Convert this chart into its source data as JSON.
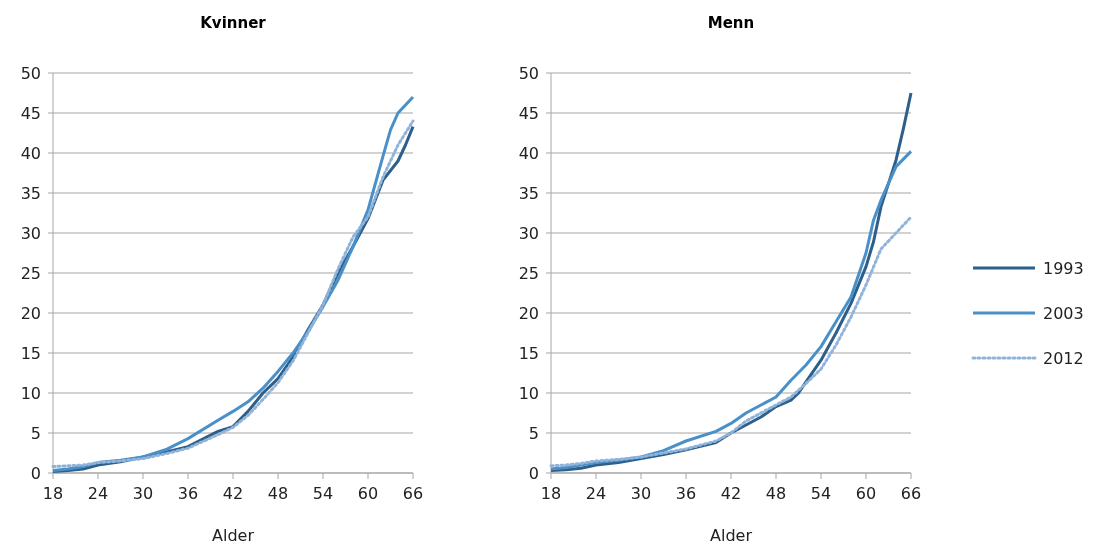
{
  "chart_data": [
    {
      "type": "line",
      "title": "Kvinner",
      "xlabel": "Alder",
      "xlim": [
        18,
        66
      ],
      "xticks": [
        18,
        24,
        30,
        36,
        42,
        48,
        54,
        60,
        66
      ],
      "ylim": [
        0,
        50
      ],
      "yticks": [
        0,
        5,
        10,
        15,
        20,
        25,
        30,
        35,
        40,
        45,
        50
      ],
      "grid": "y",
      "legend": false,
      "series": [
        {
          "color": "#2e5f8a",
          "line_style": "solid",
          "x": [
            18,
            20,
            22,
            24,
            27,
            30,
            33,
            36,
            40,
            42,
            44,
            46,
            48,
            50,
            52,
            54,
            56,
            58,
            60,
            62,
            64,
            65,
            66
          ],
          "values": [
            0.2,
            0.3,
            0.5,
            1,
            1.4,
            2,
            2.6,
            3.3,
            5.2,
            5.8,
            7.7,
            10,
            11.8,
            14.5,
            17.9,
            21,
            25,
            28.3,
            31.8,
            36.6,
            39,
            41,
            43.3
          ]
        },
        {
          "color": "#4a90c8",
          "line_style": "solid",
          "x": [
            18,
            20,
            22,
            24,
            27,
            30,
            33,
            36,
            40,
            42,
            44,
            46,
            48,
            50,
            52,
            54,
            56,
            58,
            60,
            62,
            63,
            64,
            66
          ],
          "values": [
            0.3,
            0.5,
            0.8,
            1.3,
            1.6,
            2,
            2.9,
            4.3,
            6.6,
            7.7,
            8.9,
            10.6,
            12.7,
            15,
            17.7,
            20.8,
            24.1,
            28.3,
            32.9,
            39.6,
            42.9,
            45,
            47
          ]
        },
        {
          "color": "#8fb3d9",
          "line_style": "dotted",
          "x": [
            18,
            20,
            22,
            24,
            27,
            30,
            33,
            36,
            40,
            42,
            44,
            46,
            48,
            50,
            52,
            54,
            56,
            58,
            60,
            62,
            64,
            66
          ],
          "values": [
            0.8,
            0.9,
            1,
            1.3,
            1.5,
            1.8,
            2.4,
            3.1,
            4.8,
            5.7,
            7.2,
            9.2,
            11.3,
            14,
            17.5,
            21,
            25.5,
            29.5,
            32,
            37,
            41,
            44
          ]
        }
      ]
    },
    {
      "type": "line",
      "title": "Menn",
      "xlabel": "Alder",
      "xlim": [
        18,
        66
      ],
      "xticks": [
        18,
        24,
        30,
        36,
        42,
        48,
        54,
        60,
        66
      ],
      "ylim": [
        0,
        50
      ],
      "yticks": [
        0,
        5,
        10,
        15,
        20,
        25,
        30,
        35,
        40,
        45,
        50
      ],
      "grid": "y",
      "legend": "right",
      "series": [
        {
          "name": "1993",
          "color": "#2e5f8a",
          "line_style": "solid",
          "x": [
            18,
            20,
            22,
            24,
            27,
            30,
            33,
            36,
            40,
            42,
            44,
            46,
            48,
            50,
            51,
            52,
            54,
            56,
            58,
            60,
            61,
            62,
            64,
            65,
            66
          ],
          "values": [
            0.3,
            0.4,
            0.6,
            1,
            1.3,
            1.8,
            2.3,
            2.9,
            3.8,
            5,
            6,
            7,
            8.3,
            9.1,
            10,
            11.4,
            14.1,
            17.5,
            21.2,
            25.8,
            28.9,
            33.3,
            39.1,
            43.1,
            47.5
          ]
        },
        {
          "name": "2003",
          "color": "#4a90c8",
          "line_style": "solid",
          "x": [
            18,
            20,
            22,
            24,
            27,
            30,
            33,
            36,
            40,
            42,
            44,
            46,
            48,
            50,
            52,
            54,
            56,
            58,
            60,
            61,
            62,
            64,
            66
          ],
          "values": [
            0.5,
            0.7,
            1,
            1.3,
            1.6,
            2,
            2.8,
            4,
            5.2,
            6.2,
            7.5,
            8.5,
            9.5,
            11.6,
            13.5,
            15.8,
            18.9,
            22,
            27.5,
            31.6,
            34.1,
            38.3,
            40.2
          ]
        },
        {
          "name": "2012",
          "color": "#8fb3d9",
          "line_style": "dotted",
          "x": [
            18,
            20,
            22,
            24,
            27,
            30,
            33,
            36,
            40,
            42,
            44,
            46,
            48,
            50,
            52,
            54,
            56,
            58,
            60,
            62,
            64,
            66
          ],
          "values": [
            0.9,
            1,
            1.2,
            1.5,
            1.7,
            2,
            2.5,
            3,
            4,
            5,
            6.5,
            7.5,
            8.5,
            9.5,
            11.2,
            13,
            16,
            19.5,
            23.5,
            28,
            30,
            32
          ]
        }
      ]
    }
  ]
}
